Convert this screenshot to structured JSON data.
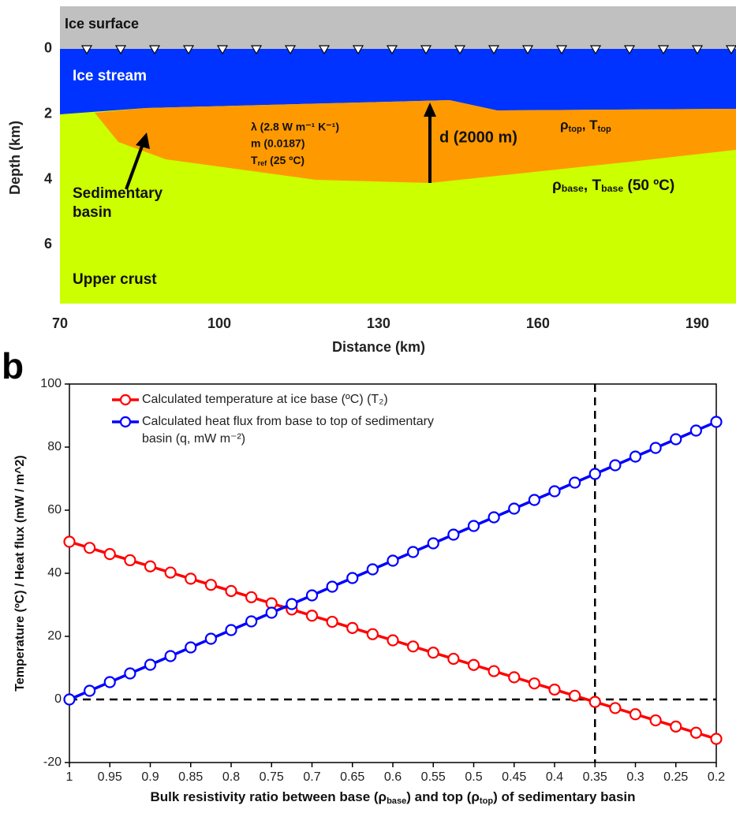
{
  "chart_data": [
    {
      "type": "section",
      "y_label": "Depth (km)",
      "x_label": "Distance (km)",
      "ylim": [
        -1.3,
        7.8
      ],
      "yticks": [
        0,
        2,
        4,
        6
      ],
      "y_reversed": true,
      "xlim": [
        70,
        197.3
      ],
      "xticks": [
        70,
        100,
        130,
        160,
        190
      ],
      "labels": {
        "ice_surface": "Ice surface",
        "ice_stream": "Ice stream",
        "lambda": "λ (2.8 W m⁻¹ K⁻¹)",
        "m": "m (0.0187)",
        "tref": [
          "T",
          "ref",
          " (25 ºC)"
        ],
        "d": "d (2000 m)",
        "top": [
          "ρ",
          "top",
          ", T",
          "top"
        ],
        "base": [
          "ρ",
          "base",
          ", T",
          "base",
          " (50 ºC)"
        ],
        "basin": "Sedimentary basin",
        "crust": "Upper crust"
      }
    },
    {
      "type": "line",
      "panel_label": "b",
      "y_label": "Temperature (ºC) / Heat flux (mW / m^2)",
      "x_label": [
        "Bulk resistivity ratio between base (ρ",
        "base",
        ") and top (ρ",
        "top",
        ") of sedimentary basin"
      ],
      "xlim": [
        1,
        0.2
      ],
      "ylim": [
        -20,
        100
      ],
      "xticks": [
        1,
        0.95,
        0.9,
        0.85,
        0.8,
        0.75,
        0.7,
        0.65,
        0.6,
        0.55,
        0.5,
        0.45,
        0.4,
        0.35,
        0.3,
        0.25,
        0.2
      ],
      "yticks": [
        -20,
        0,
        20,
        40,
        60,
        80,
        100
      ],
      "reference_lines": {
        "x": 0.35,
        "y": 0
      },
      "x": [
        1,
        0.975,
        0.95,
        0.925,
        0.9,
        0.875,
        0.85,
        0.825,
        0.8,
        0.775,
        0.75,
        0.725,
        0.7,
        0.675,
        0.65,
        0.625,
        0.6,
        0.575,
        0.55,
        0.525,
        0.5,
        0.475,
        0.45,
        0.425,
        0.4,
        0.375,
        0.35,
        0.325,
        0.3,
        0.275,
        0.25,
        0.225,
        0.2
      ],
      "series": [
        {
          "name": "Calculated temperature at ice base (ºC) (T₂)",
          "color": "#ff0000",
          "values": [
            50,
            48.05,
            46.09,
            44.14,
            42.19,
            40.23,
            38.28,
            36.33,
            34.38,
            32.42,
            30.47,
            28.52,
            26.56,
            24.61,
            22.66,
            20.7,
            18.75,
            16.8,
            14.84,
            12.89,
            10.94,
            8.98,
            7.03,
            5.08,
            3.13,
            1.17,
            -0.78,
            -2.73,
            -4.69,
            -6.64,
            -8.59,
            -10.55,
            -12.5
          ]
        },
        {
          "name": "Calculated heat flux from base to top of sedimentary basin (q, mW m⁻²)",
          "color": "#0000ff",
          "values": [
            0,
            2.75,
            5.5,
            8.25,
            11,
            13.75,
            16.5,
            19.25,
            22,
            24.75,
            27.5,
            30.25,
            33,
            35.75,
            38.5,
            41.25,
            44,
            46.75,
            49.5,
            52.25,
            55,
            57.75,
            60.5,
            63.25,
            66,
            68.75,
            71.5,
            74.25,
            77,
            79.75,
            82.5,
            85.25,
            88
          ]
        }
      ]
    }
  ]
}
